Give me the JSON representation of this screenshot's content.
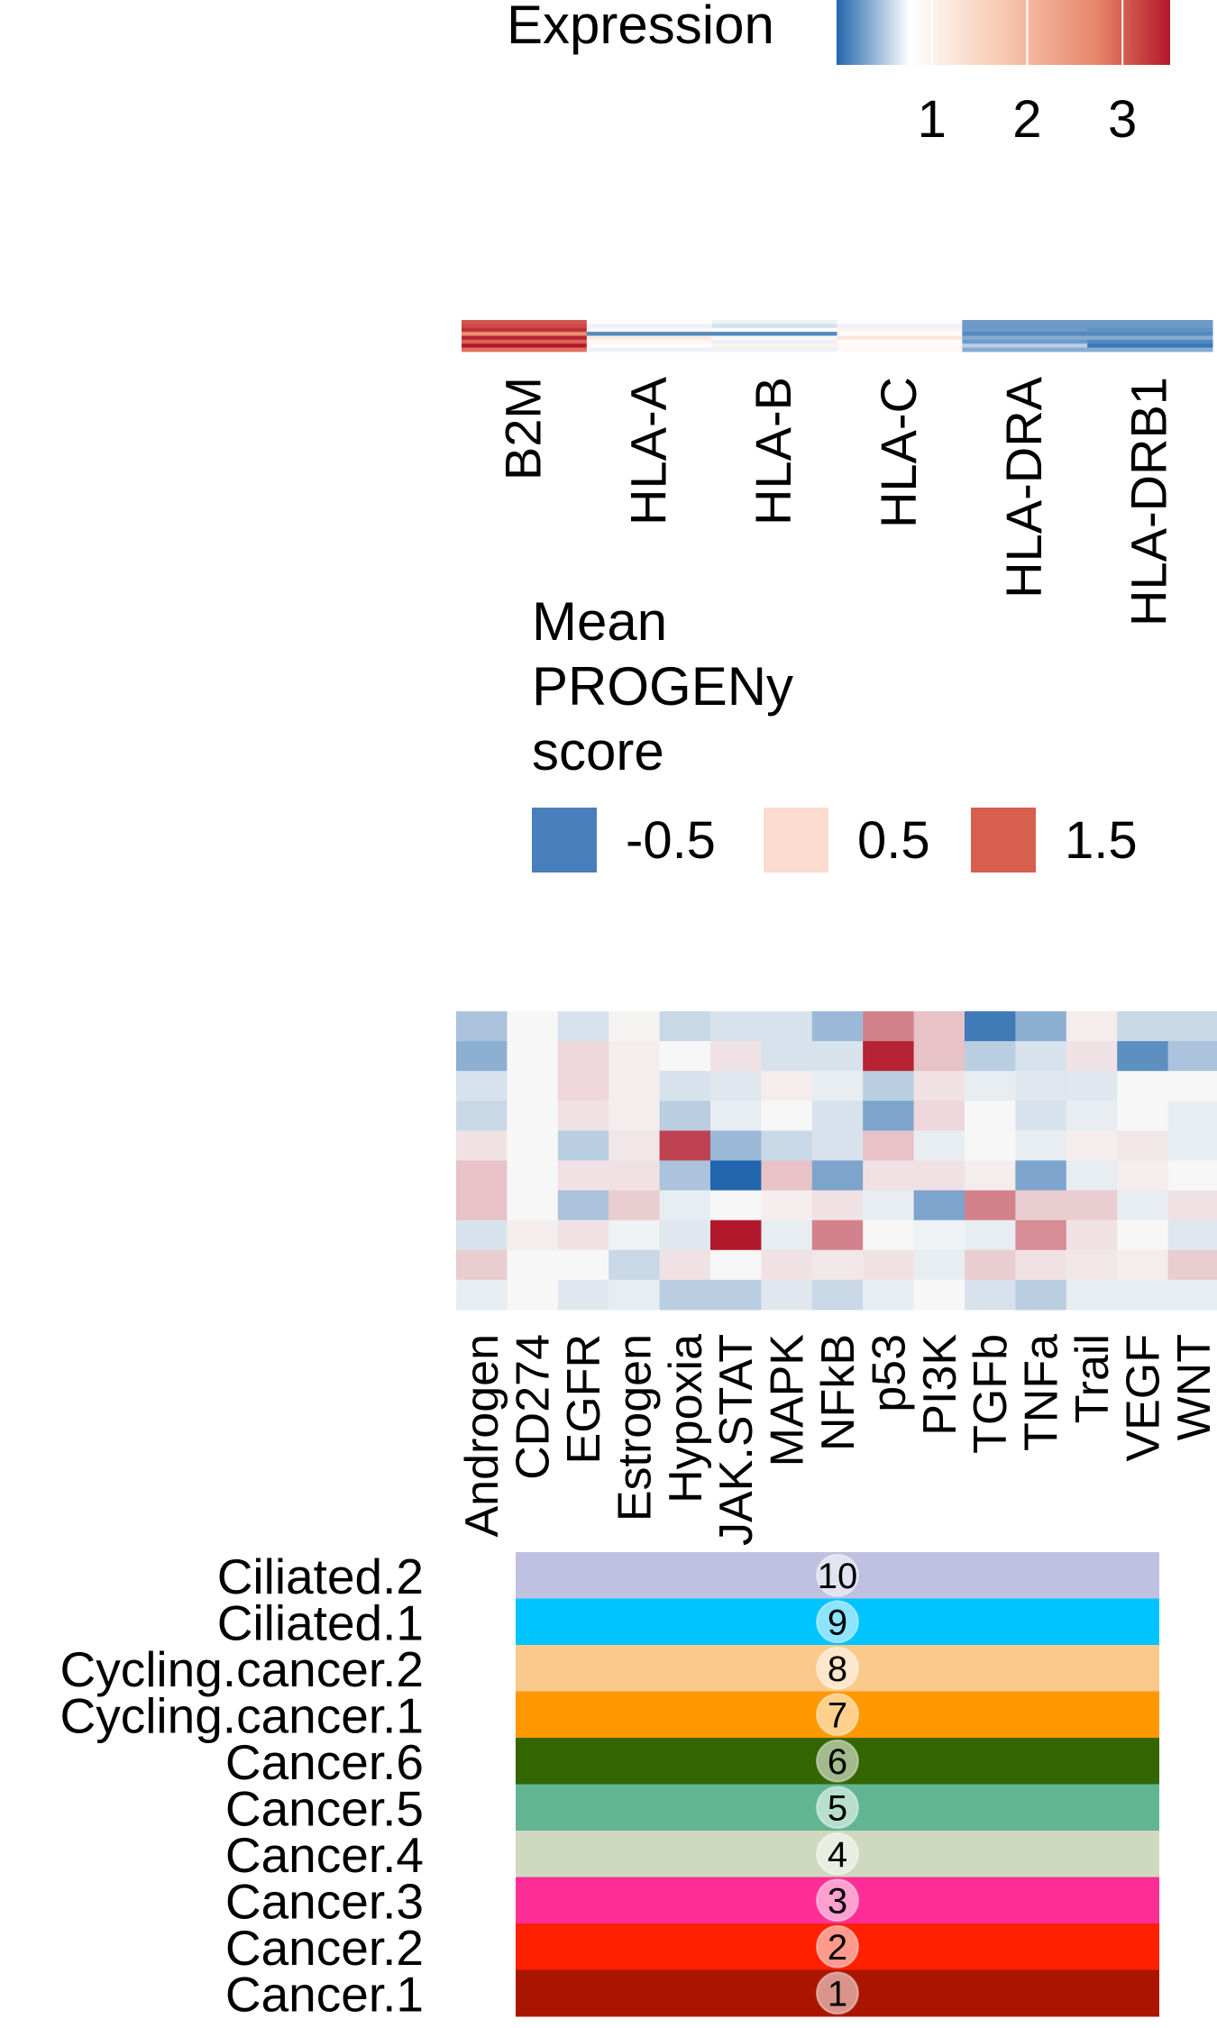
{
  "chart_data": [
    {
      "type": "heatmap",
      "id": "expression_strip",
      "legend": {
        "title": "Expression",
        "ticks": [
          "1",
          "2",
          "3"
        ],
        "tick_values": [
          1,
          2,
          3
        ],
        "range": [
          0,
          3.5
        ],
        "colors": [
          "#2166ac",
          "#ffffff",
          "#f7c9b0",
          "#e8866a",
          "#b2182b"
        ]
      },
      "columns": [
        "B2M",
        "HLA-A",
        "HLA-B",
        "HLA-C",
        "HLA-DRA",
        "HLA-DRB1"
      ],
      "values": [
        [
          3.0,
          0.9,
          0.8,
          0.9,
          0.3,
          0.3
        ],
        [
          3.1,
          0.8,
          0.7,
          0.8,
          0.3,
          0.3
        ],
        [
          3.3,
          1.0,
          0.9,
          1.1,
          0.3,
          0.25
        ],
        [
          2.5,
          0.2,
          0.2,
          0.9,
          0.2,
          0.2
        ],
        [
          3.4,
          1.2,
          1.0,
          1.3,
          0.4,
          0.4
        ],
        [
          2.9,
          1.0,
          0.8,
          0.9,
          0.3,
          0.2
        ],
        [
          3.5,
          0.9,
          1.1,
          1.0,
          0.6,
          0.1
        ],
        [
          2.8,
          0.8,
          0.8,
          1.0,
          0.4,
          0.4
        ]
      ]
    },
    {
      "type": "heatmap",
      "id": "progeny_heatmap",
      "legend": {
        "title_lines": [
          "Mean",
          "PROGENy",
          "score"
        ],
        "items": [
          {
            "label": "-0.5",
            "color": "#4a7fbd"
          },
          {
            "label": "0.5",
            "color": "#fcdcce"
          },
          {
            "label": "1.5",
            "color": "#d6604d"
          }
        ]
      },
      "columns": [
        "Androgen",
        "CD274",
        "EGFR",
        "Estrogen",
        "Hypoxia",
        "JAK.STAT",
        "MAPK",
        "NFkB",
        "p53",
        "PI3K",
        "TGFb",
        "TNFa",
        "Trail",
        "VEGF",
        "WNT"
      ],
      "rows": [
        "Ciliated.2",
        "Ciliated.1",
        "Cycling.cancer.2",
        "Cycling.cancer.1",
        "Cancer.6",
        "Cancer.5",
        "Cancer.4",
        "Cancer.3",
        "Cancer.2",
        "Cancer.1"
      ],
      "values": [
        [
          -0.4,
          0.1,
          -0.1,
          0.15,
          -0.2,
          -0.1,
          -0.1,
          -0.5,
          1.2,
          0.6,
          -1.1,
          -0.6,
          0.2,
          -0.2,
          -0.2
        ],
        [
          -0.6,
          0.1,
          0.4,
          0.2,
          0.1,
          0.3,
          -0.1,
          -0.1,
          2.1,
          0.6,
          -0.3,
          -0.1,
          0.3,
          -0.9,
          -0.4
        ],
        [
          -0.1,
          0.1,
          0.4,
          0.2,
          -0.1,
          -0.05,
          0.2,
          0.0,
          -0.3,
          0.3,
          0.0,
          -0.05,
          -0.05,
          0.1,
          0.1
        ],
        [
          -0.2,
          0.1,
          0.3,
          0.2,
          -0.3,
          0.0,
          0.1,
          -0.1,
          -0.7,
          0.4,
          0.1,
          -0.1,
          0.0,
          0.1,
          0.0
        ],
        [
          0.3,
          0.1,
          -0.3,
          0.25,
          1.8,
          -0.5,
          -0.2,
          -0.1,
          0.6,
          0.0,
          0.1,
          0.0,
          0.2,
          0.25,
          0.0
        ],
        [
          0.6,
          0.1,
          0.3,
          0.3,
          -0.4,
          -1.3,
          0.6,
          -0.7,
          0.3,
          0.3,
          0.2,
          -0.7,
          0.0,
          0.2,
          0.1
        ],
        [
          0.6,
          0.1,
          -0.4,
          0.5,
          0.0,
          0.1,
          0.2,
          0.3,
          0.0,
          -0.7,
          1.2,
          0.5,
          0.5,
          0.0,
          0.3
        ],
        [
          -0.1,
          0.2,
          0.3,
          0.05,
          -0.05,
          2.2,
          0.0,
          1.2,
          0.1,
          0.05,
          0.0,
          1.1,
          0.3,
          0.1,
          -0.05
        ],
        [
          0.5,
          0.1,
          0.1,
          -0.2,
          0.3,
          0.1,
          0.3,
          0.25,
          0.3,
          0.0,
          0.5,
          0.3,
          0.25,
          0.2,
          0.5
        ],
        [
          0.0,
          0.1,
          -0.05,
          0.0,
          -0.3,
          -0.3,
          -0.05,
          -0.2,
          0.0,
          0.1,
          -0.1,
          -0.3,
          0.0,
          0.0,
          0.0
        ]
      ]
    },
    {
      "type": "table",
      "id": "cluster_annotation",
      "rows": [
        {
          "label": "Ciliated.2",
          "number": "10",
          "color": "#bfc1e0"
        },
        {
          "label": "Ciliated.1",
          "number": "9",
          "color": "#00c4ff"
        },
        {
          "label": "Cycling.cancer.2",
          "number": "8",
          "color": "#fcc98c"
        },
        {
          "label": "Cycling.cancer.1",
          "number": "7",
          "color": "#ff9800"
        },
        {
          "label": "Cancer.6",
          "number": "6",
          "color": "#336600"
        },
        {
          "label": "Cancer.5",
          "number": "5",
          "color": "#62b592"
        },
        {
          "label": "Cancer.4",
          "number": "4",
          "color": "#cfd9bf"
        },
        {
          "label": "Cancer.3",
          "number": "3",
          "color": "#ff2e97"
        },
        {
          "label": "Cancer.2",
          "number": "2",
          "color": "#ff2000"
        },
        {
          "label": "Cancer.1",
          "number": "1",
          "color": "#aa1500"
        }
      ]
    }
  ]
}
